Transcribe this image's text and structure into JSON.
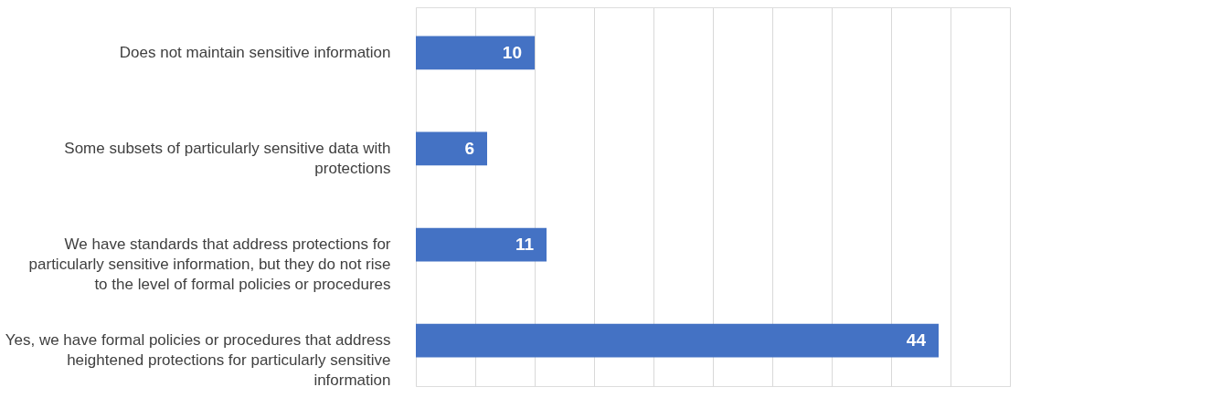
{
  "chart_data": {
    "type": "bar",
    "orientation": "horizontal",
    "categories": [
      "Does not maintain sensitive information",
      "Some subsets of particularly sensitive data with protections",
      "We have standards that address protections for particularly sensitive information, but they do not rise to the level of formal policies or procedures",
      "Yes, we have formal policies or procedures that address heightened protections for particularly sensitive information"
    ],
    "values": [
      10,
      6,
      11,
      44
    ],
    "color": "#4472c4",
    "xlim": [
      0,
      50
    ],
    "xticks": [
      0,
      5,
      10,
      15,
      20,
      25,
      30,
      35,
      40,
      45,
      50
    ],
    "grid": "x",
    "tick_labels": "y",
    "data_labels": true
  }
}
